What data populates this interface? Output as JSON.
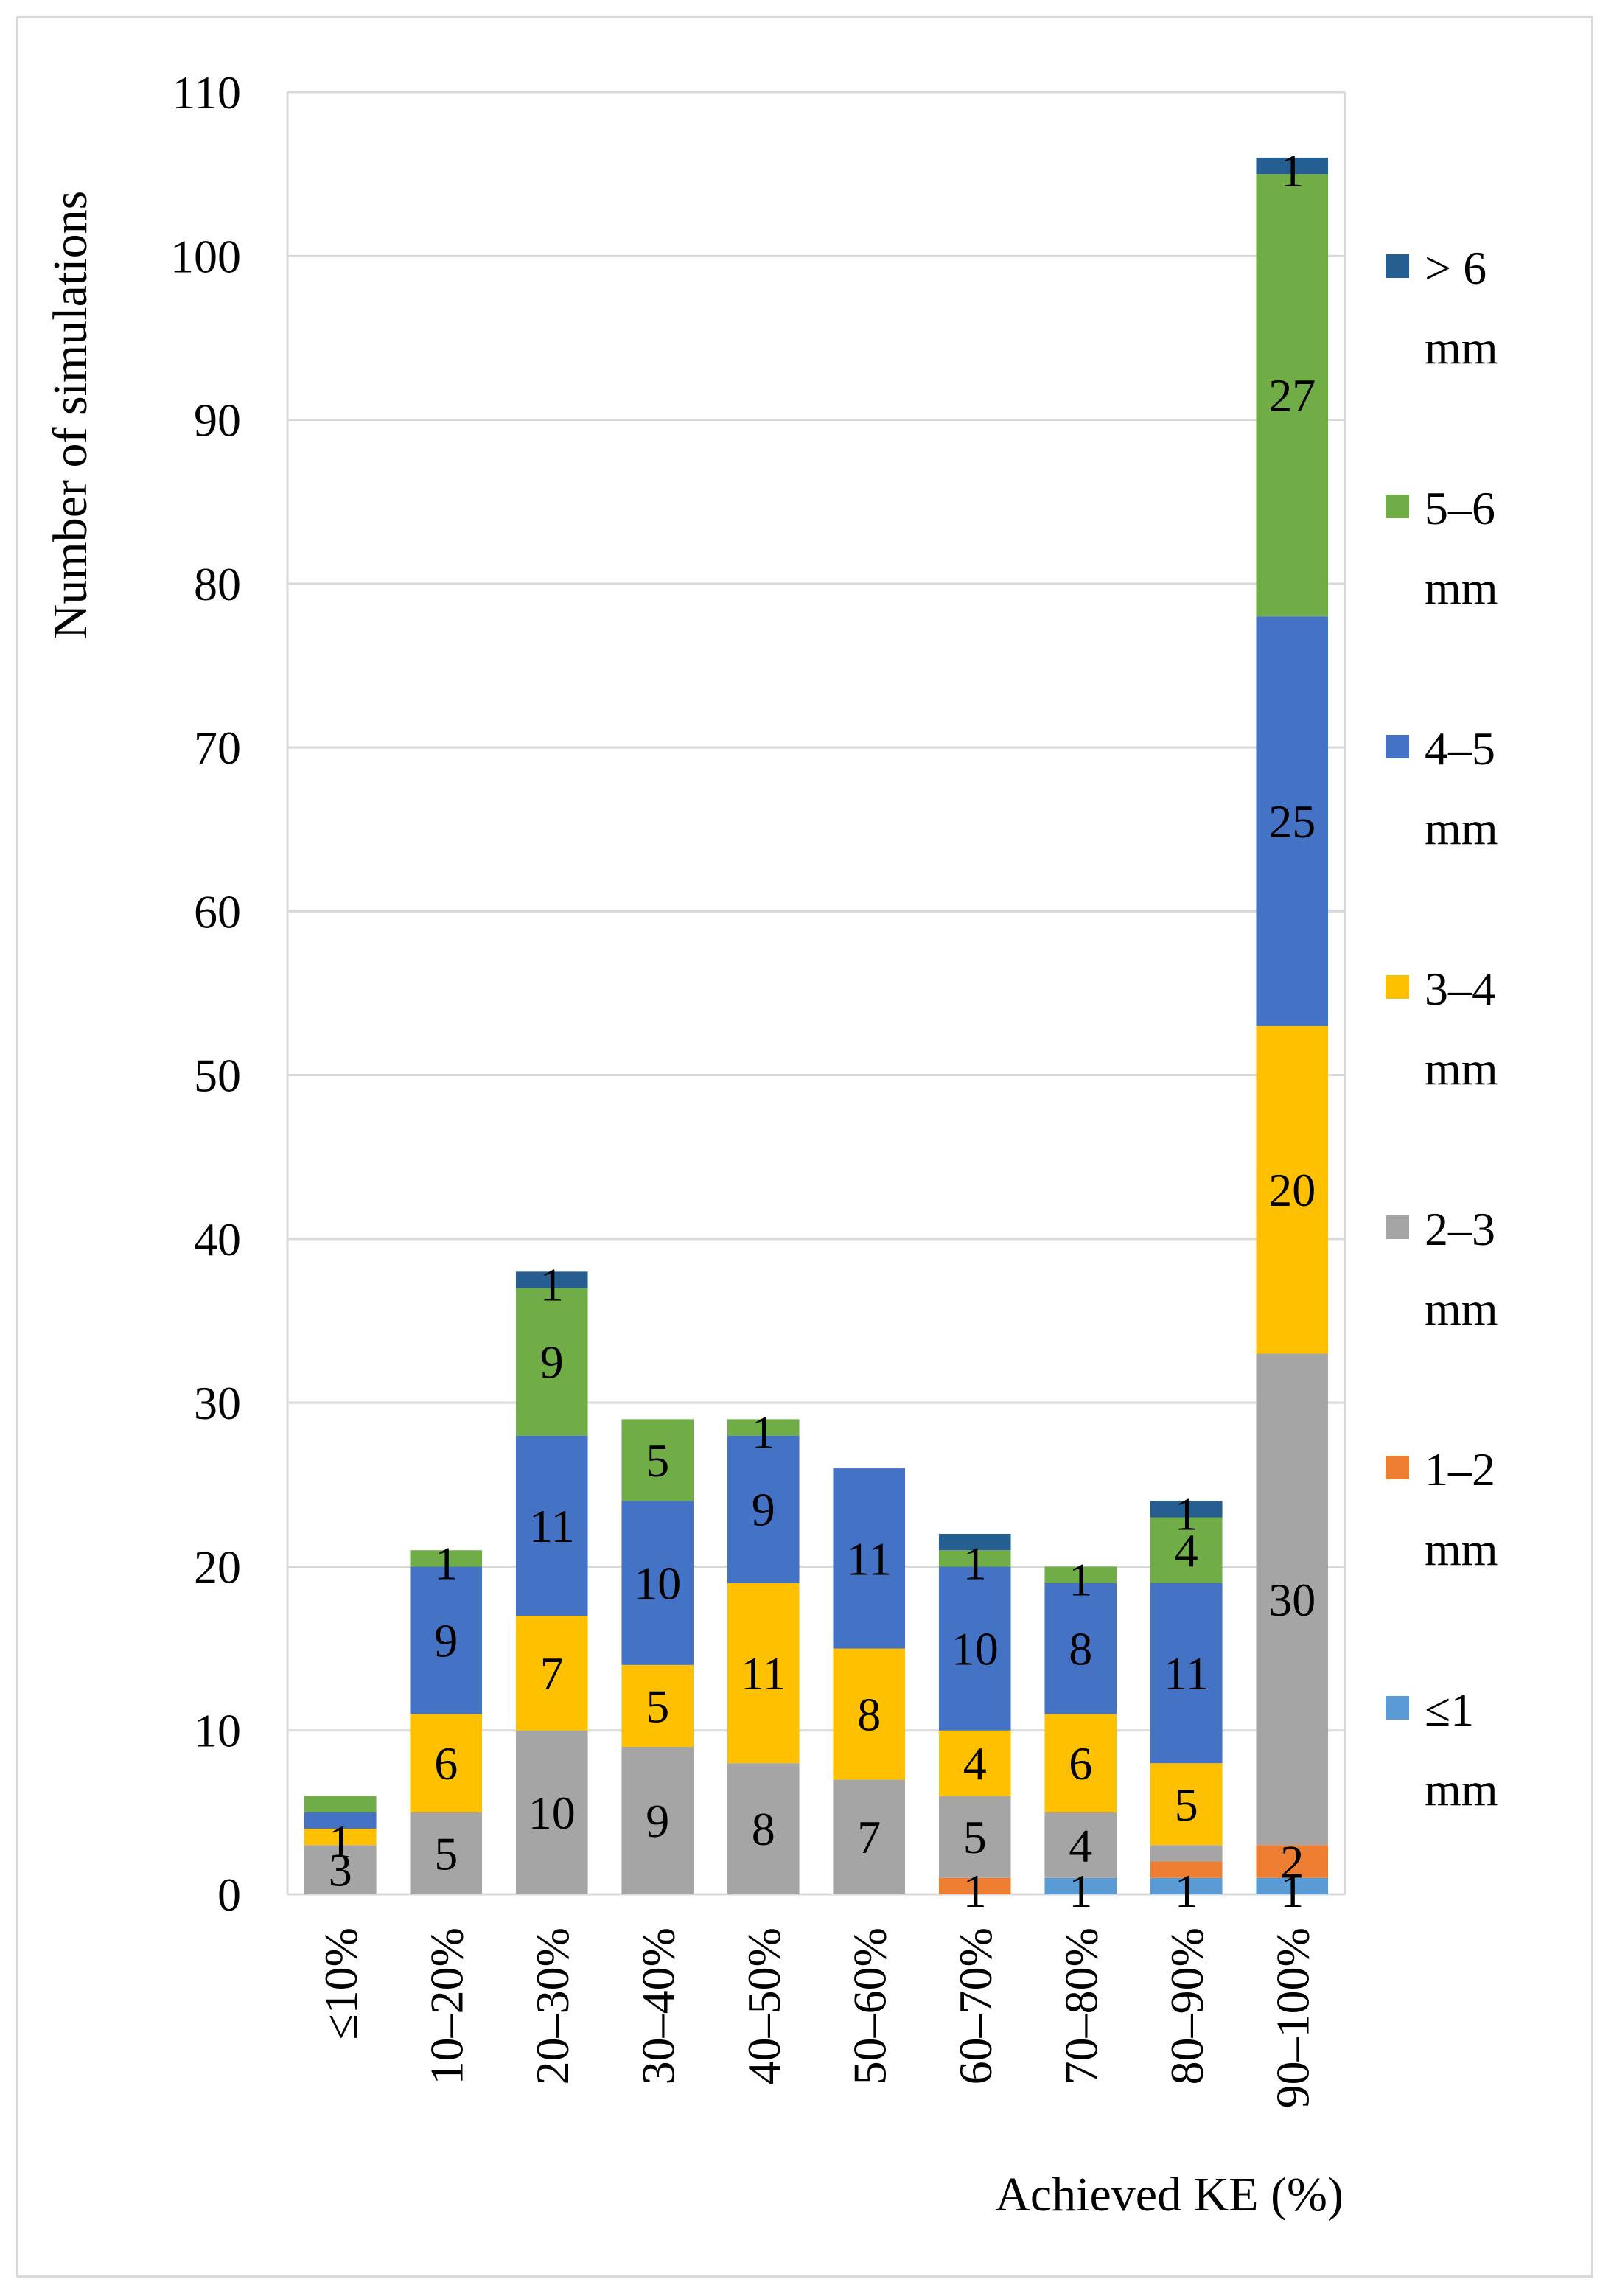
{
  "chart_data": {
    "type": "bar",
    "stacked": true,
    "title": "",
    "xlabel": "Achieved KE (%)",
    "ylabel": "Number of simulations",
    "ylim": [
      0,
      110
    ],
    "yticks": [
      0,
      10,
      20,
      30,
      40,
      50,
      60,
      70,
      80,
      90,
      100,
      110
    ],
    "grid": true,
    "legend_position": "right",
    "categories": [
      "≤10%",
      "10–20%",
      "20–30%",
      "30–40%",
      "40–50%",
      "50–60%",
      "60–70%",
      "70–80%",
      "80–90%",
      "90–100%"
    ],
    "series": [
      {
        "name": "≤1 mm",
        "legend_lines": [
          "≤1",
          "mm"
        ],
        "color": "#5b9bd5",
        "values": [
          0,
          0,
          0,
          0,
          0,
          0,
          0,
          1,
          1,
          1
        ]
      },
      {
        "name": "1–2 mm",
        "legend_lines": [
          "1–2",
          "mm"
        ],
        "color": "#ed7d31",
        "values": [
          0,
          0,
          0,
          0,
          0,
          0,
          1,
          0,
          1,
          2
        ]
      },
      {
        "name": "2–3 mm",
        "legend_lines": [
          "2–3",
          "mm"
        ],
        "color": "#a5a5a5",
        "values": [
          3,
          5,
          10,
          9,
          8,
          7,
          5,
          4,
          1,
          30
        ]
      },
      {
        "name": "3–4 mm",
        "legend_lines": [
          "3–4",
          "mm"
        ],
        "color": "#ffc000",
        "values": [
          1,
          6,
          7,
          5,
          11,
          8,
          4,
          6,
          5,
          20
        ]
      },
      {
        "name": "4–5 mm",
        "legend_lines": [
          "4–5",
          "mm"
        ],
        "color": "#4472c4",
        "values": [
          1,
          9,
          11,
          10,
          9,
          11,
          10,
          8,
          11,
          25
        ]
      },
      {
        "name": "5–6 mm",
        "legend_lines": [
          "5–6",
          "mm"
        ],
        "color": "#70ad47",
        "values": [
          1,
          1,
          9,
          5,
          1,
          0,
          1,
          1,
          4,
          27
        ]
      },
      {
        "name": "> 6 mm",
        "legend_lines": [
          "> 6",
          "mm"
        ],
        "color": "#255e91",
        "values": [
          0,
          0,
          1,
          0,
          0,
          0,
          1,
          0,
          1,
          1
        ]
      }
    ],
    "data_labels": [
      {
        "category": "≤10%",
        "series": "2–3 mm",
        "text": "3"
      },
      {
        "category": "≤10%",
        "series": "3–4 mm",
        "text": "1"
      },
      {
        "category": "10–20%",
        "series": "2–3 mm",
        "text": "5"
      },
      {
        "category": "10–20%",
        "series": "3–4 mm",
        "text": "6"
      },
      {
        "category": "10–20%",
        "series": "4–5 mm",
        "text": "9"
      },
      {
        "category": "10–20%",
        "series": "5–6 mm",
        "text": "1"
      },
      {
        "category": "20–30%",
        "series": "2–3 mm",
        "text": "10"
      },
      {
        "category": "20–30%",
        "series": "3–4 mm",
        "text": "7"
      },
      {
        "category": "20–30%",
        "series": "4–5 mm",
        "text": "11"
      },
      {
        "category": "20–30%",
        "series": "5–6 mm",
        "text": "9"
      },
      {
        "category": "20–30%",
        "series": "> 6 mm",
        "text": "1"
      },
      {
        "category": "30–40%",
        "series": "2–3 mm",
        "text": "9"
      },
      {
        "category": "30–40%",
        "series": "3–4 mm",
        "text": "5"
      },
      {
        "category": "30–40%",
        "series": "4–5 mm",
        "text": "10"
      },
      {
        "category": "30–40%",
        "series": "5–6 mm",
        "text": "5"
      },
      {
        "category": "40–50%",
        "series": "2–3 mm",
        "text": "8"
      },
      {
        "category": "40–50%",
        "series": "3–4 mm",
        "text": "11"
      },
      {
        "category": "40–50%",
        "series": "4–5 mm",
        "text": "9"
      },
      {
        "category": "40–50%",
        "series": "5–6 mm",
        "text": "1"
      },
      {
        "category": "50–60%",
        "series": "2–3 mm",
        "text": "7"
      },
      {
        "category": "50–60%",
        "series": "3–4 mm",
        "text": "8"
      },
      {
        "category": "50–60%",
        "series": "4–5 mm",
        "text": "11"
      },
      {
        "category": "60–70%",
        "series": "1–2 mm",
        "text": "1"
      },
      {
        "category": "60–70%",
        "series": "2–3 mm",
        "text": "5"
      },
      {
        "category": "60–70%",
        "series": "3–4 mm",
        "text": "4"
      },
      {
        "category": "60–70%",
        "series": "4–5 mm",
        "text": "10"
      },
      {
        "category": "60–70%",
        "series": "5–6 mm",
        "text": "1"
      },
      {
        "category": "70–80%",
        "series": "≤1 mm",
        "text": "1"
      },
      {
        "category": "70–80%",
        "series": "2–3 mm",
        "text": "4"
      },
      {
        "category": "70–80%",
        "series": "3–4 mm",
        "text": "6"
      },
      {
        "category": "70–80%",
        "series": "4–5 mm",
        "text": "8"
      },
      {
        "category": "70–80%",
        "series": "5–6 mm",
        "text": "1"
      },
      {
        "category": "80–90%",
        "series": "≤1 mm",
        "text": "1"
      },
      {
        "category": "80–90%",
        "series": "3–4 mm",
        "text": "5"
      },
      {
        "category": "80–90%",
        "series": "4–5 mm",
        "text": "11"
      },
      {
        "category": "80–90%",
        "series": "5–6 mm",
        "text": "4"
      },
      {
        "category": "80–90%",
        "series": "> 6 mm",
        "text": "1"
      },
      {
        "category": "90–100%",
        "series": "≤1 mm",
        "text": "1"
      },
      {
        "category": "90–100%",
        "series": "1–2 mm",
        "text": "2"
      },
      {
        "category": "90–100%",
        "series": "2–3 mm",
        "text": "30"
      },
      {
        "category": "90–100%",
        "series": "3–4 mm",
        "text": "20"
      },
      {
        "category": "90–100%",
        "series": "4–5 mm",
        "text": "25"
      },
      {
        "category": "90–100%",
        "series": "5–6 mm",
        "text": "27"
      },
      {
        "category": "90–100%",
        "series": "> 6 mm",
        "text": "1"
      }
    ]
  }
}
